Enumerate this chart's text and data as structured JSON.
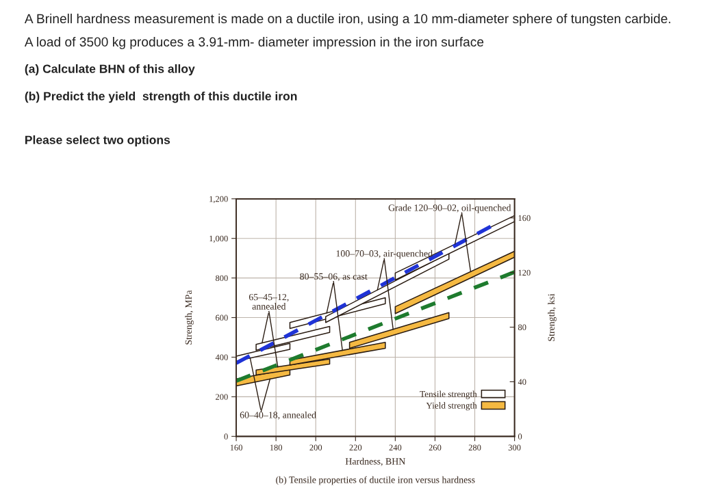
{
  "chart_data": {
    "type": "line",
    "title": "A Brinell hardness measurement is made on a ductile iron, using a 10 mm-diameter sphere of tungsten carbide.",
    "subtitle": "A load of 3500 kg produces a 3.91-mm- diameter impression in the iron surface",
    "xlabel": "Hardness, BHN",
    "ylabel": "Strength, MPa",
    "y2label": "Strength, ksi",
    "xlim": [
      160,
      300
    ],
    "xticks": [
      160,
      180,
      200,
      220,
      240,
      260,
      280,
      300
    ],
    "ylim": [
      0,
      1200
    ],
    "yticks": [
      0,
      200,
      400,
      600,
      800,
      {
        "value": 1000,
        "label": "1,000"
      },
      {
        "value": 1200,
        "label": "1,200"
      }
    ],
    "y2lim": [
      0,
      174
    ],
    "y2ticks": [
      0,
      40,
      80,
      120,
      160
    ],
    "grid": true,
    "legend": "bottom right",
    "series": [
      {
        "name": "Tensile strength",
        "color": "#ffffff",
        "x": [
          160,
          187
        ],
        "values": [
          null,
          null
        ],
        "upper": [
          405,
          470
        ],
        "lower": [
          380,
          440
        ]
      },
      {
        "color": "#ffffff",
        "x": [
          170,
          207
        ],
        "values": [
          null,
          null
        ],
        "upper": [
          465,
          555
        ],
        "lower": [
          435,
          525
        ]
      },
      {
        "color": "#ffffff",
        "x": [
          187,
          235
        ],
        "values": [
          null,
          null
        ],
        "upper": [
          575,
          700
        ],
        "lower": [
          545,
          670
        ]
      },
      {
        "color": "#ffffff",
        "x": [
          205,
          267
        ],
        "values": [
          null,
          null
        ],
        "upper": [
          605,
          925
        ],
        "lower": [
          575,
          895
        ]
      },
      {
        "color": "#ffffff",
        "x": [
          240,
          300
        ],
        "values": [
          null,
          null
        ],
        "upper": [
          825,
          1115
        ],
        "lower": [
          790,
          1085
        ]
      },
      {
        "name": "Yield strength",
        "color": "#f5b942",
        "x": [
          160,
          187
        ],
        "values": [
          null,
          null
        ],
        "upper": [
          290,
          340
        ],
        "lower": [
          255,
          310
        ]
      },
      {
        "color": "#f5b942",
        "x": [
          170,
          207
        ],
        "values": [
          null,
          null
        ],
        "upper": [
          335,
          390
        ],
        "lower": [
          310,
          365
        ]
      },
      {
        "color": "#f5b942",
        "x": [
          187,
          235
        ],
        "values": [
          null,
          null
        ],
        "upper": [
          385,
          475
        ],
        "lower": [
          360,
          445
        ]
      },
      {
        "color": "#f5b942",
        "x": [
          217,
          267
        ],
        "values": [
          null,
          null
        ],
        "upper": [
          475,
          625
        ],
        "lower": [
          445,
          595
        ]
      },
      {
        "color": "#f5b942",
        "x": [
          240,
          300
        ],
        "values": [
          null,
          null
        ],
        "upper": [
          655,
          935
        ],
        "lower": [
          620,
          905
        ]
      },
      {
        "color": "#1f33d6",
        "line_style": "dashed",
        "x": [
          160,
          288
        ],
        "values": [
          370,
          1060
        ]
      },
      {
        "color": "#1e7b2e",
        "line_style": "dashed",
        "x": [
          160,
          300
        ],
        "values": [
          280,
          830
        ]
      }
    ],
    "annotations": [
      "(a) Calculate BHN of this alloy",
      "(b) Predict the yield  strength of this ductile iron",
      "Please select two options",
      {
        "text": "60–40–18, annealed",
        "x": 167,
        "y": 395
      },
      {
        "text": "65–45–12,\nannealed",
        "x": 173,
        "y": 472
      },
      {
        "text": "80–55–06, as cast",
        "x": 205.5,
        "y": 623
      },
      {
        "text": "100–70–03, air-quenched",
        "x": 231,
        "y": 739
      },
      {
        "text": "Grade 120–90–02, oil-quenched",
        "x": 270,
        "y": 970
      },
      "(b) Tensile properties of ductile iron versus hardness"
    ]
  }
}
